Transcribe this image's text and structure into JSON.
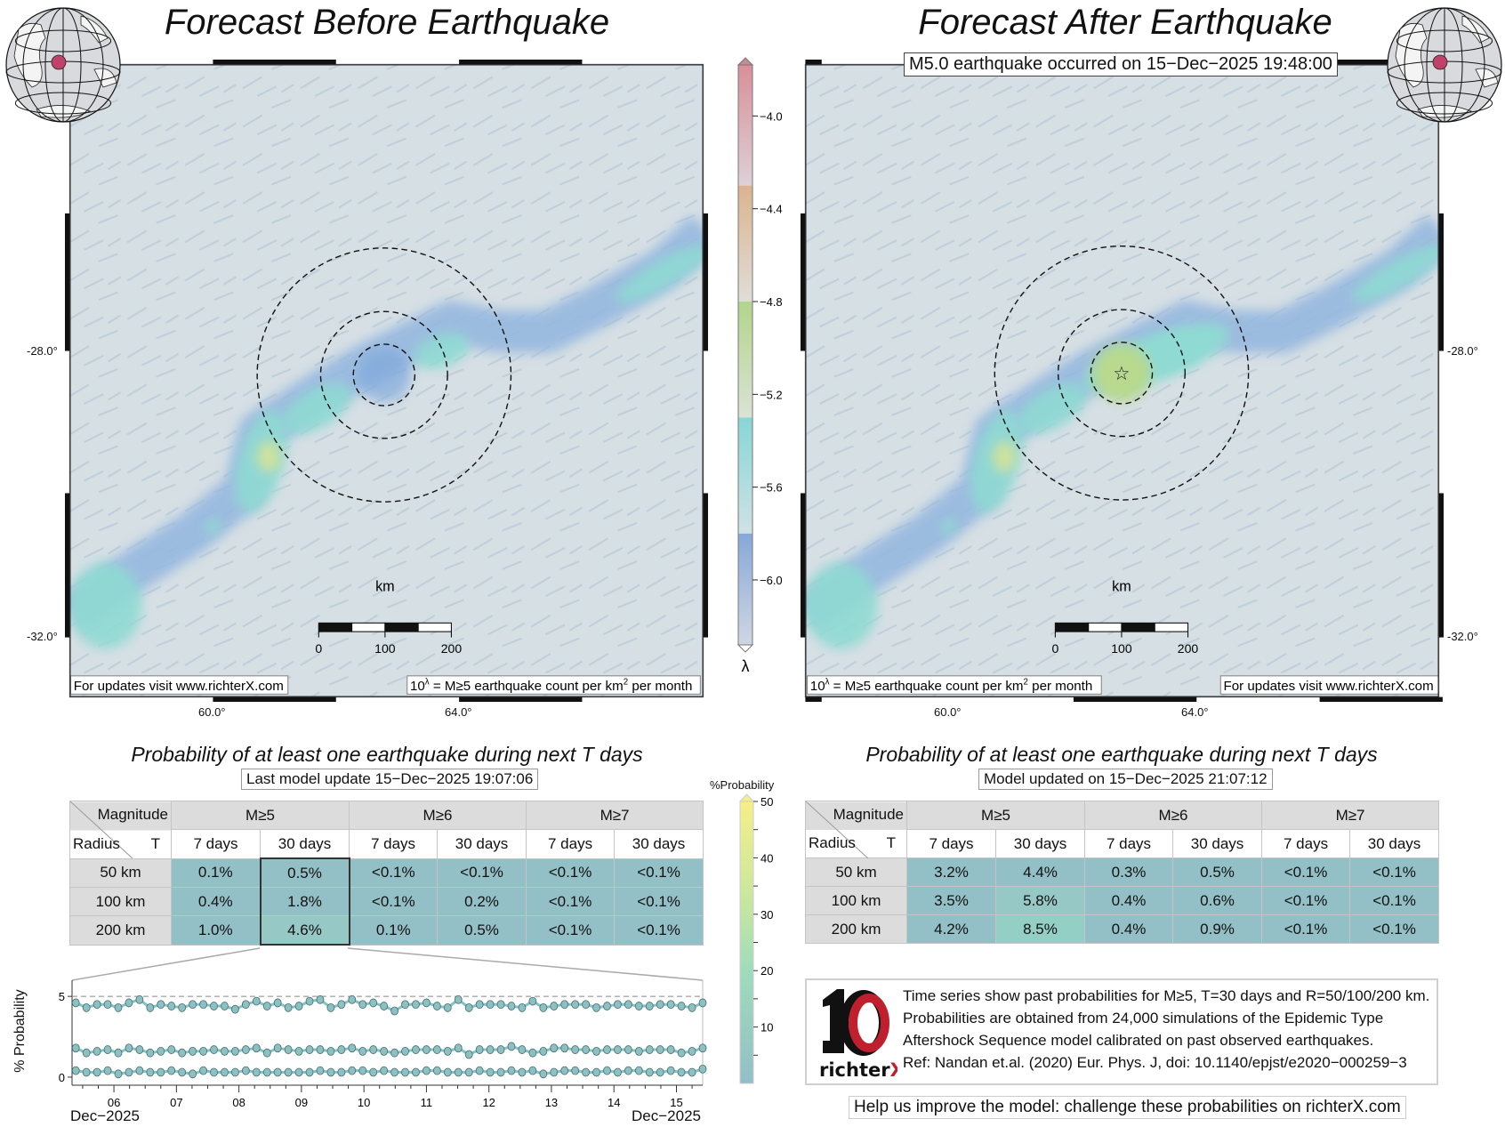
{
  "left_panel": {
    "title": "Forecast Before Earthquake",
    "map": {
      "lat_labels": [
        "-28.0°",
        "-32.0°"
      ],
      "lon_labels": [
        "60.0°",
        "64.0°"
      ],
      "scale_unit": "km",
      "scale_ticks": [
        "0",
        "100",
        "200"
      ],
      "updates_note": "For updates visit www.richterX.com",
      "legend_note": {
        "a": "10",
        "sup1": "λ",
        "b": " = M≥5 earthquake count per km",
        "sup2": "2",
        "c": " per month"
      }
    },
    "table_title": "Probability of at least one earthquake during next T days",
    "update_label": "Last model update 15−Dec−2025 19:07:06",
    "table": {
      "corner": {
        "magnitude": "Magnitude",
        "radius": "Radius",
        "t": "T"
      },
      "magnitudes": [
        "M≥5",
        "M≥6",
        "M≥7"
      ],
      "periods": [
        "7 days",
        "30 days",
        "7 days",
        "30 days",
        "7 days",
        "30 days"
      ],
      "rows": [
        {
          "radius": "50 km",
          "values": [
            "0.1%",
            "0.5%",
            "<0.1%",
            "<0.1%",
            "<0.1%",
            "<0.1%"
          ]
        },
        {
          "radius": "100 km",
          "values": [
            "0.4%",
            "1.8%",
            "<0.1%",
            "0.2%",
            "<0.1%",
            "<0.1%"
          ]
        },
        {
          "radius": "200 km",
          "values": [
            "1.0%",
            "4.6%",
            "0.1%",
            "0.5%",
            "<0.1%",
            "<0.1%"
          ]
        }
      ]
    }
  },
  "right_panel": {
    "title": "Forecast After Earthquake",
    "event_label": "M5.0 earthquake occurred on 15−Dec−2025 19:48:00",
    "map": {
      "lat_labels": [
        "-28.0°",
        "-32.0°"
      ],
      "lon_labels": [
        "60.0°",
        "64.0°"
      ],
      "scale_unit": "km",
      "scale_ticks": [
        "0",
        "100",
        "200"
      ],
      "updates_note": "For updates visit www.richterX.com",
      "legend_note": {
        "a": "10",
        "sup1": "λ",
        "b": " = M≥5 earthquake count per km",
        "sup2": "2",
        "c": " per month"
      }
    },
    "table_title": "Probability of at least one earthquake during next T days",
    "update_label": "Model updated on 15−Dec−2025 21:07:12",
    "table": {
      "corner": {
        "magnitude": "Magnitude",
        "radius": "Radius",
        "t": "T"
      },
      "magnitudes": [
        "M≥5",
        "M≥6",
        "M≥7"
      ],
      "periods": [
        "7 days",
        "30 days",
        "7 days",
        "30 days",
        "7 days",
        "30 days"
      ],
      "rows": [
        {
          "radius": "50 km",
          "values": [
            "3.2%",
            "4.4%",
            "0.3%",
            "0.5%",
            "<0.1%",
            "<0.1%"
          ]
        },
        {
          "radius": "100 km",
          "values": [
            "3.5%",
            "5.8%",
            "0.4%",
            "0.6%",
            "<0.1%",
            "<0.1%"
          ]
        },
        {
          "radius": "200 km",
          "values": [
            "4.2%",
            "8.5%",
            "0.4%",
            "0.9%",
            "<0.1%",
            "<0.1%"
          ]
        }
      ]
    },
    "info": {
      "lines": [
        "Time series show past probabilities for M≥5, T=30 days and R=50/100/200 km.",
        "Probabilities are obtained from 24,000 simulations of the Epidemic Type",
        "Aftershock Sequence model calibrated on past observed earthquakes.",
        "Ref: Nandan et.al. (2020) Eur. Phys. J, doi: 10.1140/epjst/e2020−000259−3"
      ],
      "logo_text": "richterX"
    },
    "help_link": "Help us improve the model: challenge these probabilities on richterX.com"
  },
  "lambda_colorbar": {
    "label": "λ",
    "ticks": [
      "−4.0",
      "−4.4",
      "−4.8",
      "−5.2",
      "−5.6",
      "−6.0"
    ],
    "tick_values": [
      -4.0,
      -4.4,
      -4.8,
      -5.2,
      -5.6,
      -6.0
    ],
    "range": [
      -6.28,
      -3.78
    ]
  },
  "prob_colorbar": {
    "label": "%Probability",
    "ticks": [
      "50",
      "40",
      "30",
      "20",
      "10"
    ],
    "tick_values": [
      50,
      40,
      30,
      20,
      10
    ],
    "range": [
      0,
      50
    ]
  },
  "colors": {
    "cell": "#93c0c6",
    "cell_mid": "#96c8c5",
    "cell_high": "#93cfc4",
    "series": "#86c3c0",
    "marker": "#8fbfc1",
    "epicenter_dot": "#c0426a"
  },
  "chart_data": {
    "type": "line",
    "ylabel": "% Probability",
    "xlabel": "",
    "x_start_label": "Dec−2025",
    "x_end_label": "Dec−2025",
    "x_ticks": [
      "06",
      "07",
      "08",
      "09",
      "10",
      "11",
      "12",
      "13",
      "14",
      "15"
    ],
    "x_tick_values": [
      6,
      7,
      8,
      9,
      10,
      11,
      12,
      13,
      14,
      15
    ],
    "xlim": [
      5.33,
      15.42
    ],
    "x_range_days": [
      5.39,
      15.42
    ],
    "y_ticks": [
      "0",
      "5"
    ],
    "y_tick_values": [
      0,
      5
    ],
    "ylim": [
      -0.5,
      6
    ],
    "reference_line": 5,
    "series": [
      {
        "name": "R=200 km",
        "values": [
          4.6,
          4.3,
          4.5,
          4.5,
          4.3,
          4.6,
          4.8,
          4.3,
          4.5,
          4.4,
          4.3,
          4.5,
          4.5,
          4.4,
          4.4,
          4.2,
          4.5,
          4.7,
          4.4,
          4.6,
          4.3,
          4.4,
          4.7,
          4.8,
          4.3,
          4.5,
          4.8,
          4.5,
          4.6,
          4.4,
          4.1,
          4.5,
          4.5,
          4.6,
          4.4,
          4.3,
          4.8,
          4.3,
          4.5,
          4.5,
          4.5,
          4.4,
          4.3,
          4.7,
          4.3,
          4.4,
          4.5,
          4.5,
          4.5,
          4.3,
          4.4,
          4.5,
          4.5,
          4.4,
          4.4,
          4.5,
          4.5,
          4.4,
          4.3,
          4.6
        ]
      },
      {
        "name": "R=100 km",
        "values": [
          1.8,
          1.5,
          1.6,
          1.7,
          1.5,
          1.8,
          1.7,
          1.5,
          1.6,
          1.7,
          1.5,
          1.6,
          1.6,
          1.7,
          1.6,
          1.6,
          1.7,
          1.8,
          1.5,
          1.8,
          1.7,
          1.6,
          1.7,
          1.7,
          1.6,
          1.7,
          1.8,
          1.6,
          1.7,
          1.6,
          1.5,
          1.6,
          1.7,
          1.7,
          1.7,
          1.6,
          1.8,
          1.4,
          1.7,
          1.7,
          1.7,
          1.9,
          1.7,
          1.5,
          1.6,
          1.8,
          1.8,
          1.7,
          1.7,
          1.6,
          1.7,
          1.7,
          1.7,
          1.6,
          1.7,
          1.7,
          1.7,
          1.5,
          1.6,
          1.8
        ]
      },
      {
        "name": "R=50 km",
        "values": [
          0.4,
          0.3,
          0.3,
          0.4,
          0.2,
          0.3,
          0.4,
          0.3,
          0.3,
          0.4,
          0.3,
          0.2,
          0.4,
          0.3,
          0.3,
          0.3,
          0.4,
          0.3,
          0.3,
          0.3,
          0.3,
          0.3,
          0.3,
          0.4,
          0.3,
          0.3,
          0.4,
          0.4,
          0.3,
          0.4,
          0.3,
          0.3,
          0.3,
          0.4,
          0.4,
          0.3,
          0.3,
          0.3,
          0.4,
          0.3,
          0.3,
          0.4,
          0.3,
          0.4,
          0.2,
          0.3,
          0.4,
          0.4,
          0.3,
          0.3,
          0.4,
          0.3,
          0.4,
          0.4,
          0.3,
          0.3,
          0.4,
          0.3,
          0.3,
          0.5
        ]
      }
    ]
  }
}
